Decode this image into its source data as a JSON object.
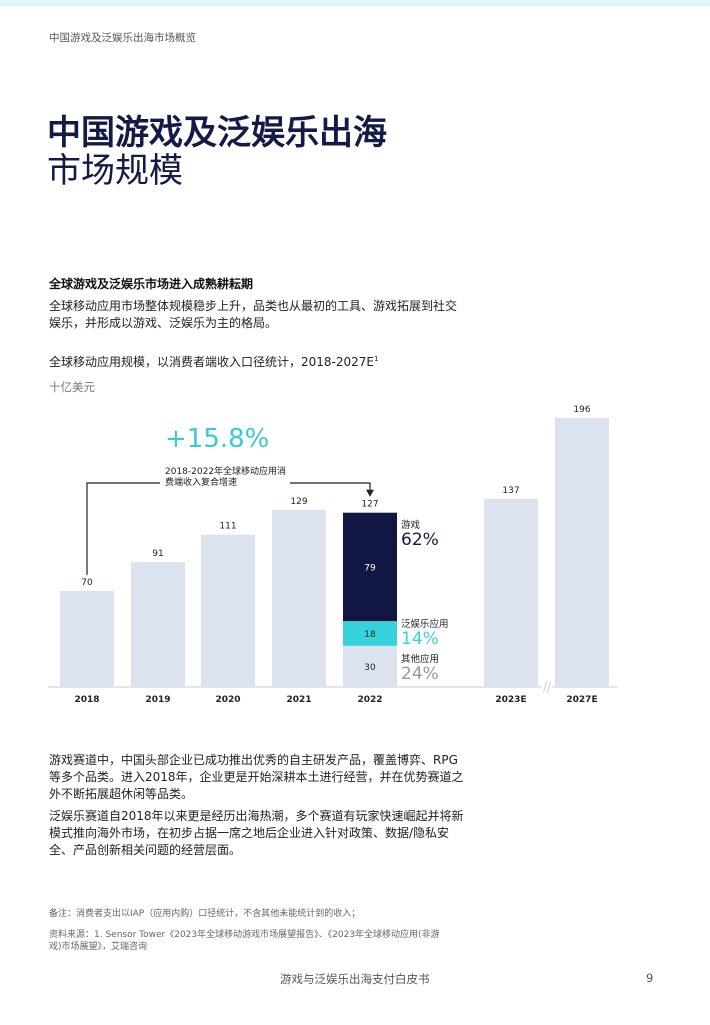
{
  "header": {
    "text": "中国游戏及泛娱乐出海市场概览"
  },
  "title": {
    "line1": "中国游戏及泛娱乐出海",
    "line2": "市场规模"
  },
  "section": {
    "heading": "全球游戏及泛娱乐市场进入成熟耕耘期",
    "intro": "全球移动应用市场整体规模稳步上升，品类也从最初的工具、游戏拓展到社交娱乐，并形成以游戏、泛娱乐为主的格局。"
  },
  "chart_data": {
    "type": "bar",
    "title": "全球移动应用规模，以消费者端收入口径统计，2018-2027E",
    "title_sup": "1",
    "unit": "十亿美元",
    "categories": [
      "2018",
      "2019",
      "2020",
      "2021",
      "2022",
      "2023E",
      "2027E"
    ],
    "values": [
      70,
      91,
      111,
      129,
      127,
      137,
      196
    ],
    "breakdown_2022": [
      {
        "name": "游戏",
        "value": 79,
        "share": "62%",
        "color": "#111642"
      },
      {
        "name": "泛娱乐应用",
        "value": 18,
        "share": "14%",
        "color": "#36d3dd"
      },
      {
        "name": "其他应用",
        "value": 30,
        "share": "24%",
        "color": "#dde3ee"
      }
    ],
    "cagr": {
      "value": "+15.8%",
      "label": "2018-2022年全球移动应用消费端收入复合增速"
    },
    "bar_color": "#dde3ee",
    "axis_break": "//",
    "ylim": [
      0,
      200
    ]
  },
  "body": {
    "p1": "游戏赛道中，中国头部企业已成功推出优秀的自主研发产品，覆盖博弈、RPG等多个品类。进入2018年，企业更是开始深耕本土进行经营，并在优势赛道之外不断拓展超休闲等品类。",
    "p2": "泛娱乐赛道自2018年以来更是经历出海热潮，多个赛道有玩家快速崛起并将新模式推向海外市场，在初步占据一席之地后企业进入针对政策、数据/隐私安全、产品创新相关问题的经营层面。"
  },
  "notes": {
    "note": "备注：消费者支出以IAP（应用内购）口径统计，不含其他未能统计到的收入；",
    "source": "资料来源：1. Sensor Tower《2023年全球移动游戏市场展望报告》、《2023年全球移动应用(非游戏)市场展望》，艾瑞咨询"
  },
  "footer": {
    "title": "游戏与泛娱乐出海支付白皮书",
    "page": "9"
  }
}
